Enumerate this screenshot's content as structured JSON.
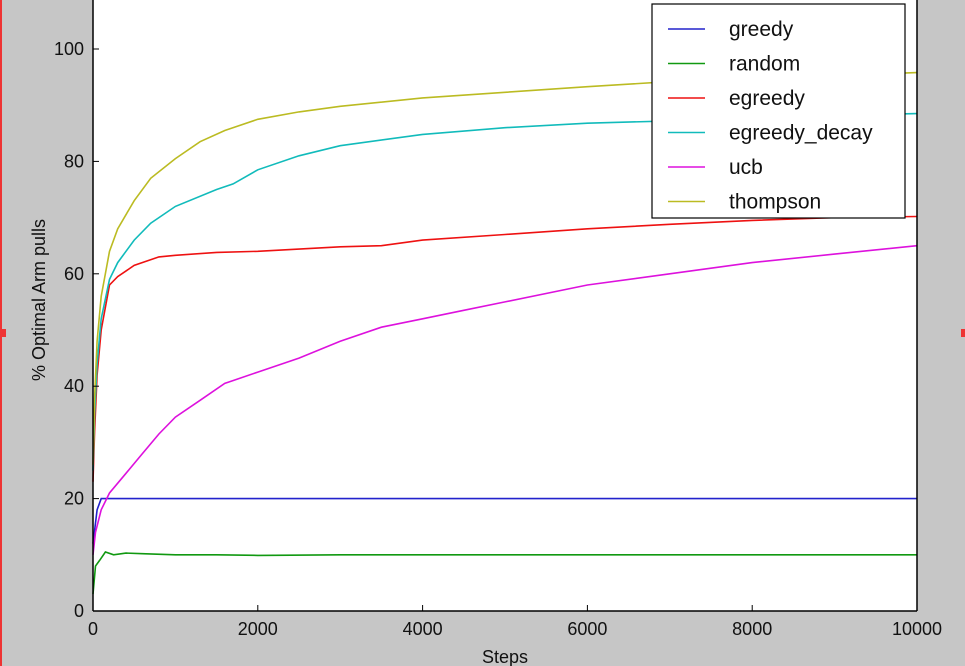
{
  "chart_data": {
    "type": "line",
    "xlabel": "Steps",
    "ylabel": "% Optimal Arm pulls",
    "xlim": [
      0,
      10000
    ],
    "ylim": [
      0,
      110
    ],
    "xticks": [
      0,
      2000,
      4000,
      6000,
      8000,
      10000
    ],
    "yticks": [
      0,
      20,
      40,
      60,
      80,
      100
    ],
    "x_tick_labels": [
      "0",
      "2000",
      "4000",
      "6000",
      "8000",
      "10000"
    ],
    "y_tick_labels": [
      "0",
      "20",
      "40",
      "60",
      "80",
      "100"
    ],
    "grid": false,
    "legend_position": "top-right",
    "series": [
      {
        "name": "greedy",
        "color": "#2222cc",
        "x": [
          0,
          50,
          100,
          200,
          500,
          1000,
          2000,
          4000,
          6000,
          8000,
          10000
        ],
        "y": [
          12,
          18,
          20,
          20,
          20,
          20,
          20,
          20,
          20,
          20,
          20
        ]
      },
      {
        "name": "random",
        "color": "#119911",
        "x": [
          0,
          30,
          80,
          150,
          250,
          400,
          600,
          1000,
          1500,
          2000,
          3000,
          4000,
          6000,
          8000,
          10000
        ],
        "y": [
          3,
          8,
          9,
          10.5,
          10,
          10.3,
          10.2,
          10,
          10,
          9.9,
          10,
          10,
          10,
          10,
          10
        ]
      },
      {
        "name": "egreedy",
        "color": "#ee1111",
        "x": [
          0,
          20,
          50,
          100,
          200,
          300,
          500,
          800,
          1000,
          1500,
          2000,
          3000,
          3500,
          4000,
          5000,
          6000,
          7000,
          8000,
          9000,
          10000
        ],
        "y": [
          23,
          32,
          42,
          50,
          58,
          59.5,
          61.5,
          63,
          63.3,
          63.8,
          64,
          64.8,
          65,
          66,
          67,
          68,
          68.8,
          69.5,
          70,
          70.2
        ]
      },
      {
        "name": "egreedy_decay",
        "color": "#11bbbb",
        "x": [
          0,
          20,
          50,
          100,
          200,
          300,
          500,
          700,
          1000,
          1500,
          1700,
          2000,
          2500,
          3000,
          4000,
          5000,
          6000,
          7000,
          8000,
          9000,
          10000
        ],
        "y": [
          25,
          35,
          44,
          52,
          59,
          62,
          66,
          69,
          72,
          75,
          76,
          78.5,
          81,
          82.8,
          84.8,
          86,
          86.8,
          87.2,
          87.8,
          88.2,
          88.5
        ]
      },
      {
        "name": "ucb",
        "color": "#dd11dd",
        "x": [
          0,
          30,
          100,
          200,
          400,
          600,
          800,
          1000,
          1300,
          1600,
          2000,
          2500,
          3000,
          3500,
          4000,
          4500,
          5000,
          6000,
          7000,
          8000,
          9000,
          10000
        ],
        "y": [
          10,
          14,
          18,
          21,
          24.5,
          28,
          31.5,
          34.5,
          37.5,
          40.5,
          42.5,
          45,
          48,
          50.5,
          52,
          53.5,
          55,
          58,
          60,
          62,
          63.5,
          65
        ]
      },
      {
        "name": "thompson",
        "color": "#bbbb22",
        "x": [
          0,
          20,
          50,
          100,
          200,
          300,
          500,
          700,
          1000,
          1300,
          1600,
          2000,
          2500,
          3000,
          4000,
          5000,
          6000,
          7000,
          8000,
          9000,
          10000
        ],
        "y": [
          26,
          38,
          48,
          56,
          64,
          68,
          73,
          77,
          80.5,
          83.5,
          85.5,
          87.5,
          88.8,
          89.8,
          91.3,
          92.3,
          93.3,
          94.2,
          95,
          95.3,
          95.8
        ]
      }
    ]
  }
}
